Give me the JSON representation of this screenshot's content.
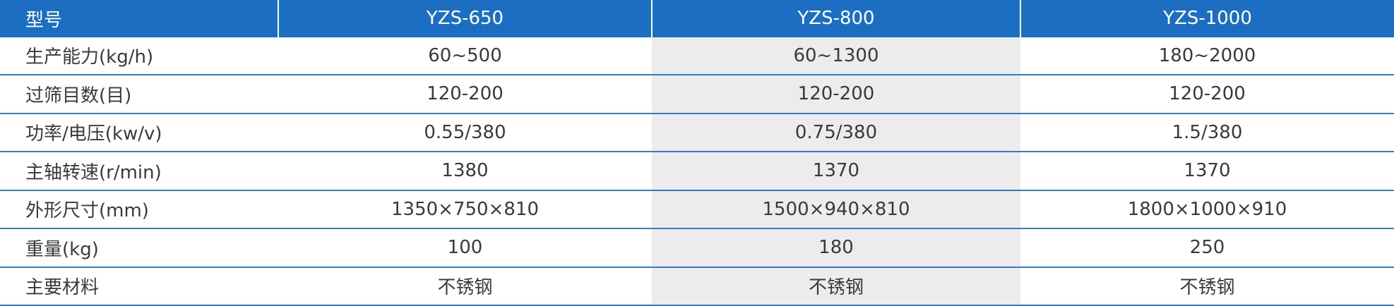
{
  "table": {
    "header": [
      "型号",
      "YZS-650",
      "YZS-800",
      "YZS-1000"
    ],
    "rows": [
      [
        "生产能力(kg/h)",
        "60~500",
        "60~1300",
        "180~2000"
      ],
      [
        "过筛目数(目)",
        "120-200",
        "120-200",
        "120-200"
      ],
      [
        "功率/电压(kw/v)",
        "0.55/380",
        "0.75/380",
        "1.5/380"
      ],
      [
        "主轴转速(r/min)",
        "1380",
        "1370",
        "1370"
      ],
      [
        "外形尺寸(mm)",
        "1350×750×810",
        "1500×940×810",
        "1800×1000×910"
      ],
      [
        "重量(kg)",
        "100",
        "180",
        "250"
      ],
      [
        "主要材料",
        "不锈钢",
        "不锈钢",
        "不锈钢"
      ]
    ]
  }
}
